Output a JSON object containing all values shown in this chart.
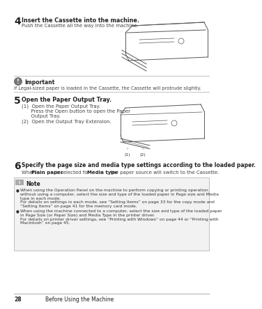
{
  "bg_color": "#ffffff",
  "text_color": "#222222",
  "page_number": "28",
  "footer_text": "Before Using the Machine",
  "step4_num": "4",
  "step4_title": "Insert the Cassette into the machine.",
  "step4_body": "Push the Cassette all the way into the machine.",
  "important_label": "Important",
  "important_body": "If Legal-sized paper is loaded in the Cassette, the Cassette will protrude slightly.",
  "step5_num": "5",
  "step5_title": "Open the Paper Output Tray.",
  "step5_1a": "(1)  Open the Paper Output Tray.",
  "step5_1b": "      Press the Open button to open the Paper",
  "step5_1c": "      Output Tray.",
  "step5_2": "(2)  Open the Output Tray Extension.",
  "step6_num": "6",
  "step6_title": "Specify the page size and media type settings according to the loaded paper.",
  "step6_body1": "When ",
  "step6_body2": "Plain paper",
  "step6_body3": " is selected for ",
  "step6_body4": "Media type",
  "step6_body5": ", the paper source will switch to the Cassette.",
  "note_label": "Note",
  "note1a": "When using the Operation Panel on the machine to perform copying or printing operation",
  "note1b": "without using a computer, select the size and type of the loaded paper in ",
  "note1b2": "Page size",
  "note1b3": " and ",
  "note1b4": "Media",
  "note1c": "type",
  "note1c2": " in each mode.",
  "note1d": "For details on settings in each mode, see “Setting Items” on page 33 for the copy mode and",
  "note1e": "“Setting Items” on page 41 for the memory card mode.",
  "note2a": "When using the machine connected to a computer, select the size and type of the loaded paper",
  "note2b": "in ",
  "note2b2": "Page Size",
  "note2b3": " (or ",
  "note2b4": "Paper Size",
  "note2b5": ") and ",
  "note2b6": "Media Type",
  "note2b7": " in the printer driver.",
  "note2c": "For details on printer driver settings, see “Printing with Windows” on page 44 or “Printing with",
  "note2d": "Macintosh” on page 45."
}
